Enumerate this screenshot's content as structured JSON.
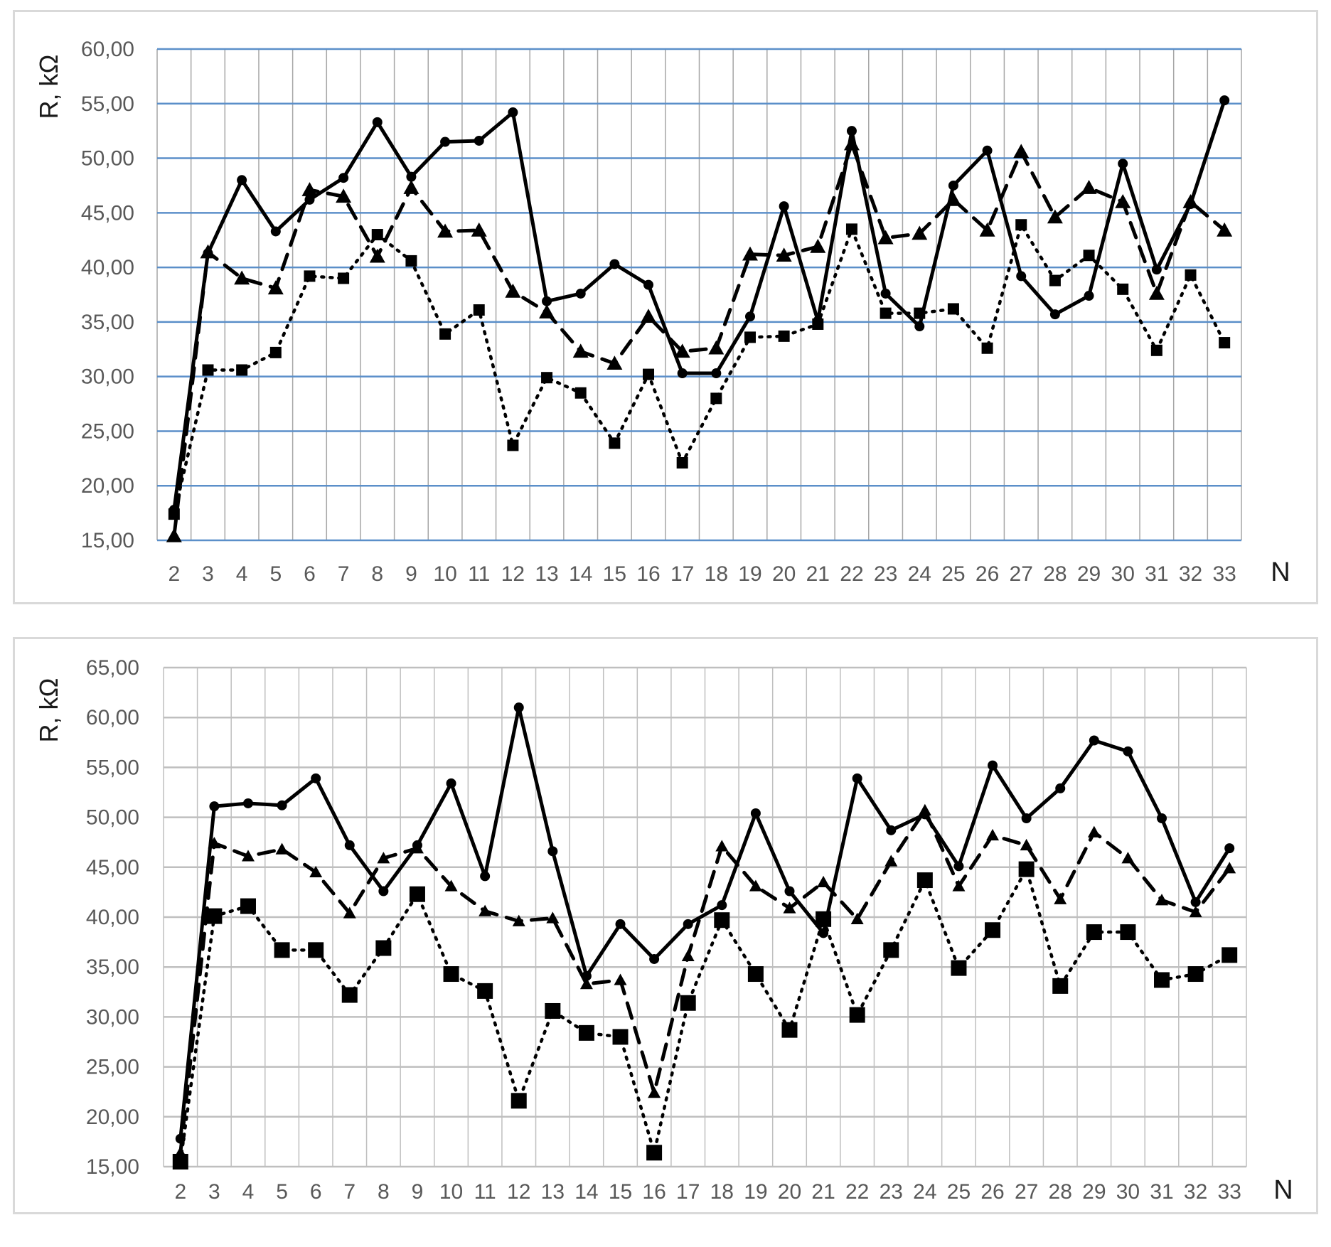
{
  "chart_data": [
    {
      "type": "line",
      "ylabel": "R, kΩ",
      "xlabel": "N",
      "categories": [
        "2",
        "3",
        "4",
        "5",
        "6",
        "7",
        "8",
        "9",
        "10",
        "11",
        "12",
        "13",
        "14",
        "15",
        "16",
        "17",
        "18",
        "19",
        "20",
        "21",
        "22",
        "23",
        "24",
        "25",
        "26",
        "27",
        "28",
        "29",
        "30",
        "31",
        "32",
        "33"
      ],
      "ylim": [
        15,
        60
      ],
      "yticks": [
        "15,00",
        "20,00",
        "25,00",
        "30,00",
        "35,00",
        "40,00",
        "45,00",
        "50,00",
        "55,00",
        "60,00"
      ],
      "grid": {
        "horizontal_color": "#5b8fc9",
        "vertical_color": "#a6a6a6"
      },
      "legend": "none",
      "series": [
        {
          "line": "solid",
          "marker": "circle",
          "values": [
            17.8,
            41.3,
            48.0,
            43.3,
            46.2,
            48.2,
            53.3,
            48.3,
            51.5,
            51.6,
            54.2,
            36.9,
            37.6,
            40.3,
            38.4,
            30.3,
            30.3,
            35.5,
            45.6,
            35.1,
            52.5,
            37.6,
            34.6,
            47.5,
            50.7,
            39.2,
            35.7,
            37.4,
            49.5,
            39.8,
            45.8,
            55.3
          ]
        },
        {
          "line": "dashed",
          "marker": "triangle",
          "values": [
            15.4,
            41.4,
            39.0,
            38.1,
            47.1,
            46.5,
            41.0,
            47.3,
            43.3,
            43.4,
            37.8,
            35.9,
            32.3,
            31.2,
            35.5,
            32.3,
            32.6,
            41.2,
            41.1,
            41.9,
            51.3,
            42.7,
            43.1,
            46.2,
            43.4,
            50.6,
            44.6,
            47.3,
            46.0,
            37.6,
            46.0,
            43.4
          ]
        },
        {
          "line": "dotted",
          "marker": "square",
          "values": [
            17.4,
            30.6,
            30.6,
            32.2,
            39.2,
            39.0,
            43.0,
            40.6,
            33.9,
            36.1,
            23.7,
            29.9,
            28.5,
            23.9,
            30.2,
            22.1,
            28.0,
            33.6,
            33.7,
            34.8,
            43.5,
            35.8,
            35.8,
            36.2,
            32.6,
            43.9,
            38.8,
            41.1,
            38.0,
            32.4,
            39.3,
            33.1
          ]
        }
      ]
    },
    {
      "type": "line",
      "ylabel": "R, kΩ",
      "xlabel": "N",
      "categories": [
        "2",
        "3",
        "4",
        "5",
        "6",
        "7",
        "8",
        "9",
        "10",
        "11",
        "12",
        "13",
        "14",
        "15",
        "16",
        "17",
        "18",
        "19",
        "20",
        "21",
        "22",
        "23",
        "24",
        "25",
        "26",
        "27",
        "28",
        "29",
        "30",
        "31",
        "32",
        "33"
      ],
      "ylim": [
        15,
        65
      ],
      "yticks": [
        "15,00",
        "20,00",
        "25,00",
        "30,00",
        "35,00",
        "40,00",
        "45,00",
        "50,00",
        "55,00",
        "60,00",
        "65,00"
      ],
      "grid": {
        "horizontal_color": "#bfbfbf",
        "vertical_color": "#bfbfbf"
      },
      "legend": "none",
      "series": [
        {
          "line": "solid",
          "marker": "circle",
          "values": [
            17.8,
            51.1,
            51.4,
            51.2,
            53.9,
            47.2,
            42.6,
            47.2,
            53.4,
            44.1,
            61.0,
            46.6,
            34.1,
            39.3,
            35.8,
            39.3,
            41.2,
            50.4,
            42.6,
            38.4,
            53.9,
            48.7,
            50.3,
            45.1,
            55.2,
            49.9,
            52.9,
            57.7,
            56.6,
            49.9,
            41.5,
            46.9
          ]
        },
        {
          "line": "dashed",
          "marker": "triangle",
          "values": [
            16.4,
            47.4,
            46.1,
            46.8,
            44.5,
            40.4,
            45.9,
            46.9,
            43.1,
            40.6,
            39.6,
            39.9,
            33.3,
            33.7,
            22.4,
            36.1,
            47.1,
            43.1,
            40.9,
            43.5,
            39.8,
            45.6,
            50.7,
            43.1,
            48.2,
            47.2,
            41.8,
            48.5,
            45.9,
            41.7,
            40.5,
            44.9
          ]
        },
        {
          "line": "dotted",
          "marker": "square",
          "values": [
            15.5,
            40.1,
            41.1,
            36.7,
            36.7,
            32.2,
            36.9,
            42.3,
            34.3,
            32.6,
            21.6,
            30.6,
            28.4,
            28.0,
            16.4,
            31.4,
            39.7,
            34.3,
            28.7,
            39.8,
            30.2,
            36.7,
            43.7,
            34.9,
            38.7,
            44.8,
            33.1,
            38.5,
            38.5,
            33.7,
            34.3,
            36.2
          ]
        }
      ]
    }
  ]
}
